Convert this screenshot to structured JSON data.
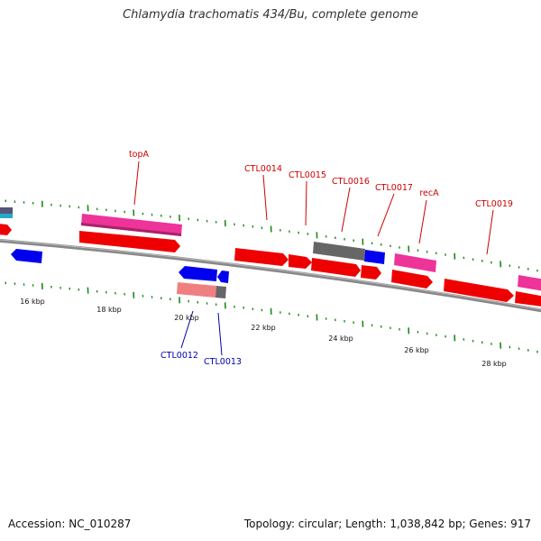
{
  "title": "Chlamydia trachomatis 434/Bu, complete genome",
  "footer": {
    "accession": "Accession: NC_010287",
    "stats": "Topology: circular; Length: 1,038,842 bp; Genes: 917"
  },
  "colors": {
    "backbone": "#888888",
    "tick": "#1a8a1a",
    "forward_label": "#cc0000",
    "reverse_label": "#0000aa",
    "red_gene": "#ee0000",
    "pink_gene": "#ee3399",
    "blue_gene": "#0000ee",
    "gray_gene": "#666666",
    "salmon_gene": "#f08080",
    "cyan_gene": "#22aacc"
  },
  "scale_labels": [
    "16 kbp",
    "18 kbp",
    "20 kbp",
    "22 kbp",
    "24 kbp",
    "26 kbp",
    "28 kbp"
  ],
  "gene_labels": {
    "forward": [
      "topA",
      "CTL0014",
      "CTL0015",
      "CTL0016",
      "CTL0017",
      "recA",
      "CTL0019"
    ],
    "reverse": [
      "CTL0012",
      "CTL0013"
    ]
  }
}
